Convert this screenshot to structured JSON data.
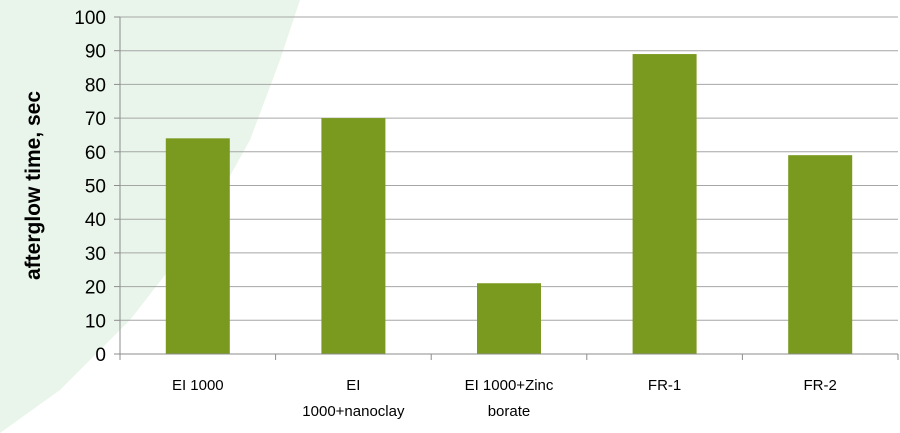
{
  "chart_data": {
    "type": "bar",
    "categories": [
      [
        "EI 1000"
      ],
      [
        "EI",
        "1000+nanoclay"
      ],
      [
        "EI 1000+Zinc",
        "borate"
      ],
      [
        "FR-1"
      ],
      [
        "FR-2"
      ]
    ],
    "values": [
      64,
      70,
      21,
      89,
      59
    ],
    "title": "",
    "xlabel": "",
    "ylabel": "afterglow time, sec",
    "ylim": [
      0,
      100
    ],
    "yticks": [
      0,
      10,
      20,
      30,
      40,
      50,
      60,
      70,
      80,
      90,
      100
    ],
    "grid": true,
    "legend": "none",
    "colors": {
      "bar": "#7a9a1f",
      "grid": "#a6a6a6",
      "axis": "#8c8c8c",
      "background_accent": "#e9f5ea"
    }
  }
}
